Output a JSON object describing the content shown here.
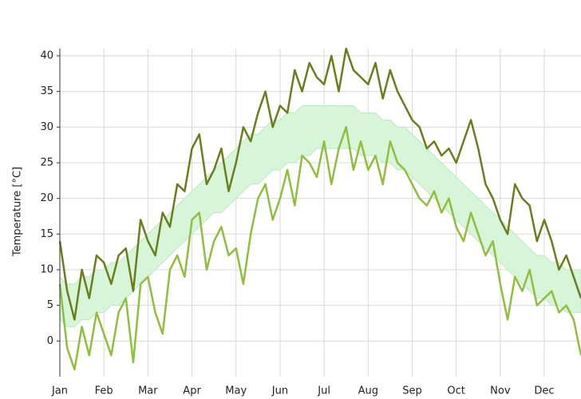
{
  "chart_data": {
    "type": "line",
    "y_label": "Temperature [°C]",
    "categories": [
      "Jan",
      null,
      null,
      null,
      null,
      null,
      "Feb",
      null,
      null,
      null,
      null,
      null,
      "Mar",
      null,
      null,
      null,
      null,
      null,
      "Apr",
      null,
      null,
      null,
      null,
      null,
      "May",
      null,
      null,
      null,
      null,
      null,
      "Jun",
      null,
      null,
      null,
      null,
      null,
      "Jul",
      null,
      null,
      null,
      null,
      null,
      "Aug",
      null,
      null,
      null,
      null,
      null,
      "Sep",
      null,
      null,
      null,
      null,
      null,
      "Oct",
      null,
      null,
      null,
      null,
      null,
      "Nov",
      null,
      null,
      null,
      null,
      null,
      "Dec",
      null,
      null,
      null,
      null,
      null
    ],
    "band": {
      "color": "#d6f5d9",
      "lower": [
        3,
        2,
        2,
        3,
        3,
        4,
        4,
        5,
        5,
        6,
        7,
        8,
        9,
        10,
        11,
        12,
        13,
        14,
        15,
        16,
        17,
        18,
        18,
        19,
        20,
        21,
        22,
        22,
        23,
        24,
        24,
        25,
        25,
        26,
        26,
        27,
        27,
        27,
        27,
        27,
        27,
        26,
        26,
        26,
        25,
        25,
        24,
        24,
        23,
        22,
        21,
        20,
        19,
        18,
        17,
        16,
        15,
        14,
        13,
        12,
        11,
        10,
        9,
        8,
        7,
        6,
        6,
        5,
        5,
        4,
        4,
        4
      ],
      "upper": [
        9,
        8,
        8,
        9,
        9,
        10,
        10,
        11,
        11,
        12,
        13,
        14,
        15,
        16,
        17,
        18,
        19,
        20,
        21,
        22,
        23,
        24,
        25,
        26,
        27,
        28,
        29,
        29,
        30,
        31,
        31,
        32,
        32,
        33,
        33,
        33,
        33,
        33,
        33,
        33,
        33,
        32,
        32,
        32,
        31,
        31,
        30,
        30,
        29,
        28,
        27,
        26,
        25,
        24,
        23,
        22,
        21,
        20,
        19,
        18,
        17,
        16,
        15,
        14,
        13,
        12,
        12,
        11,
        11,
        10,
        10,
        10
      ]
    },
    "series": [
      {
        "color": "#6b7d1c",
        "values": [
          14,
          7,
          3,
          10,
          6,
          12,
          11,
          8,
          12,
          13,
          7,
          17,
          14,
          12,
          18,
          16,
          22,
          21,
          27,
          29,
          22,
          24,
          27,
          21,
          25,
          30,
          28,
          32,
          35,
          30,
          33,
          32,
          38,
          35,
          39,
          37,
          36,
          40,
          35,
          41,
          38,
          37,
          36,
          39,
          34,
          38,
          35,
          33,
          31,
          30,
          27,
          28,
          26,
          27,
          25,
          28,
          31,
          27,
          22,
          20,
          17,
          15,
          22,
          20,
          19,
          14,
          17,
          14,
          10,
          12,
          9,
          6
        ]
      },
      {
        "color": "#8fbf3c",
        "values": [
          8,
          -1,
          -4,
          2,
          -2,
          4,
          1,
          -2,
          4,
          6,
          -3,
          8,
          9,
          4,
          1,
          10,
          12,
          9,
          17,
          18,
          10,
          14,
          16,
          12,
          13,
          8,
          15,
          20,
          22,
          17,
          20,
          24,
          19,
          26,
          25,
          23,
          28,
          22,
          27,
          30,
          24,
          28,
          24,
          26,
          22,
          28,
          25,
          24,
          22,
          20,
          19,
          21,
          18,
          20,
          16,
          14,
          18,
          15,
          12,
          14,
          8,
          3,
          9,
          7,
          10,
          5,
          6,
          7,
          4,
          5,
          3,
          -2
        ]
      }
    ],
    "ylim": [
      -5,
      41
    ],
    "yticks": [
      0,
      5,
      10,
      15,
      20,
      25,
      30,
      35,
      40
    ],
    "grid": true
  }
}
